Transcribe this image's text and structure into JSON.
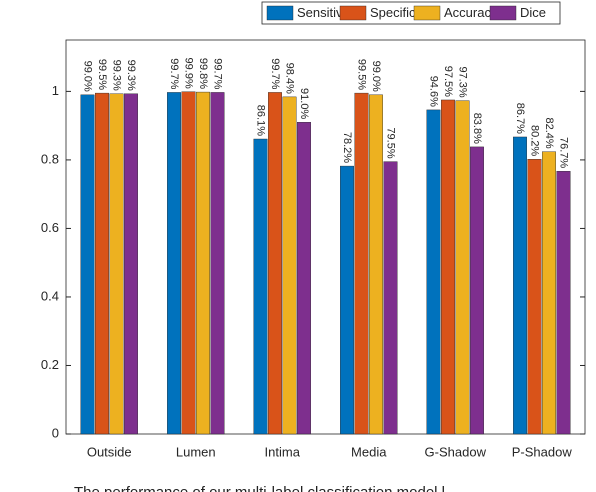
{
  "caption": "The performance of our multi-label classification model l",
  "chart_data": {
    "type": "bar",
    "categories": [
      "Outside",
      "Lumen",
      "Intima",
      "Media",
      "G-Shadow",
      "P-Shadow"
    ],
    "series": [
      {
        "name": "Sensitivity",
        "color": "#0072bd",
        "values": [
          0.99,
          0.997,
          0.861,
          0.782,
          0.946,
          0.867
        ],
        "value_labels": [
          "99.0%",
          "99.7%",
          "86.1%",
          "78.2%",
          "94.6%",
          "86.7%"
        ]
      },
      {
        "name": "Specificity",
        "color": "#d95319",
        "values": [
          0.995,
          0.999,
          0.997,
          0.995,
          0.975,
          0.802
        ],
        "value_labels": [
          "99.5%",
          "99.9%",
          "99.7%",
          "99.5%",
          "97.5%",
          "80.2%"
        ]
      },
      {
        "name": "Accuracy",
        "color": "#edb120",
        "values": [
          0.993,
          0.998,
          0.984,
          0.99,
          0.973,
          0.824
        ],
        "value_labels": [
          "99.3%",
          "99.8%",
          "98.4%",
          "99.0%",
          "97.3%",
          "82.4%"
        ]
      },
      {
        "name": "Dice",
        "color": "#7e2f8e",
        "values": [
          0.993,
          0.997,
          0.91,
          0.795,
          0.838,
          0.767
        ],
        "value_labels": [
          "99.3%",
          "99.7%",
          "91.0%",
          "79.5%",
          "83.8%",
          "76.7%"
        ]
      }
    ],
    "ylim": [
      0,
      1.15
    ],
    "yticks": [
      0,
      0.2,
      0.4,
      0.6,
      0.8,
      1
    ],
    "grid": false,
    "legend": "top"
  }
}
